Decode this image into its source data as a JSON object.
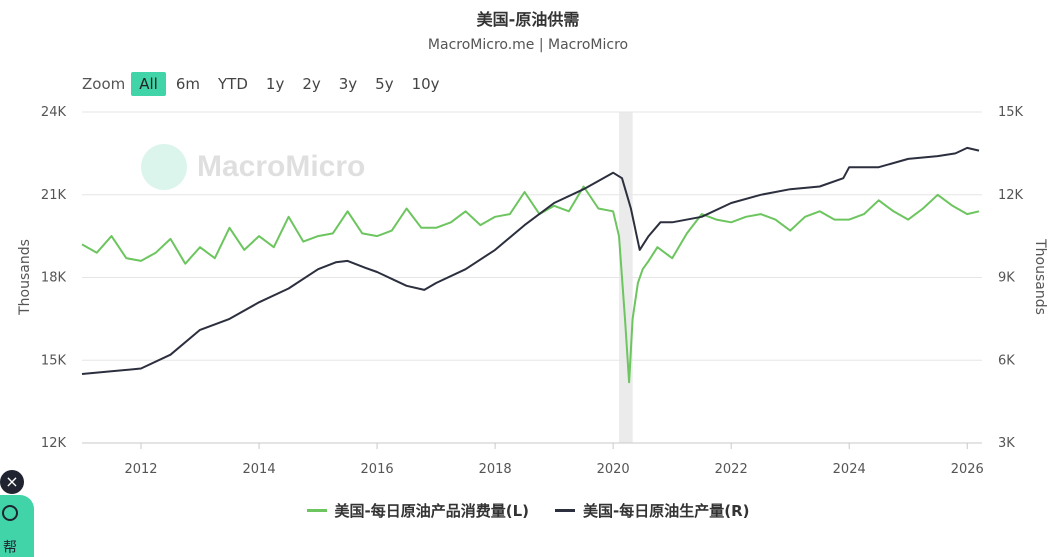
{
  "title": "美国-原油供需",
  "subtitle": "MacroMicro.me | MacroMicro",
  "watermark": "MacroMicro",
  "zoom": {
    "label": "Zoom",
    "buttons": [
      "All",
      "6m",
      "YTD",
      "1y",
      "2y",
      "3y",
      "5y",
      "10y"
    ],
    "active": "All"
  },
  "help_widget": {
    "close_glyph": "×",
    "label": "帮"
  },
  "colors": {
    "consumption": "#6cc55e",
    "production": "#2c2f3e",
    "shade": "#ebebeb",
    "accent": "#40d4a8"
  },
  "chart_data": {
    "type": "line",
    "x_range": [
      2011.0,
      2026.25
    ],
    "x_ticks": [
      "2012",
      "2014",
      "2016",
      "2018",
      "2020",
      "2022",
      "2024",
      "2026"
    ],
    "y_left": {
      "label": "Thousands",
      "range": [
        12000,
        24000
      ],
      "ticks": [
        "12K",
        "15K",
        "18K",
        "21K",
        "24K"
      ]
    },
    "y_right": {
      "label": "Thousands",
      "range": [
        3000,
        15000
      ],
      "ticks": [
        "3K",
        "6K",
        "9K",
        "12K",
        "15K"
      ]
    },
    "shaded_region": [
      2020.1,
      2020.33
    ],
    "grid": true,
    "legend_position": "bottom",
    "series": [
      {
        "name": "美国-每日原油产品消费量(L)",
        "axis": "left",
        "x": [
          2011.0,
          2011.25,
          2011.5,
          2011.75,
          2012.0,
          2012.25,
          2012.5,
          2012.75,
          2013.0,
          2013.25,
          2013.5,
          2013.75,
          2014.0,
          2014.25,
          2014.5,
          2014.75,
          2015.0,
          2015.25,
          2015.5,
          2015.75,
          2016.0,
          2016.25,
          2016.5,
          2016.75,
          2017.0,
          2017.25,
          2017.5,
          2017.75,
          2018.0,
          2018.25,
          2018.5,
          2018.75,
          2019.0,
          2019.25,
          2019.5,
          2019.75,
          2020.0,
          2020.1,
          2020.2,
          2020.27,
          2020.33,
          2020.42,
          2020.5,
          2020.6,
          2020.75,
          2021.0,
          2021.25,
          2021.5,
          2021.75,
          2022.0,
          2022.25,
          2022.5,
          2022.75,
          2023.0,
          2023.25,
          2023.5,
          2023.75,
          2024.0,
          2024.25,
          2024.5,
          2024.75,
          2025.0,
          2025.25,
          2025.5,
          2025.75,
          2026.0,
          2026.2
        ],
        "y": [
          19200,
          18900,
          19500,
          18700,
          18600,
          18900,
          19400,
          18500,
          19100,
          18700,
          19800,
          19000,
          19500,
          19100,
          20200,
          19300,
          19500,
          19600,
          20400,
          19600,
          19500,
          19700,
          20500,
          19800,
          19800,
          20000,
          20400,
          19900,
          20200,
          20300,
          21100,
          20300,
          20600,
          20400,
          21300,
          20500,
          20400,
          19500,
          16500,
          14200,
          16500,
          17800,
          18300,
          18600,
          19100,
          18700,
          19600,
          20300,
          20100,
          20000,
          20200,
          20300,
          20100,
          19700,
          20200,
          20400,
          20100,
          20100,
          20300,
          20800,
          20400,
          20100,
          20500,
          21000,
          20600,
          20300,
          20400
        ]
      },
      {
        "name": "美国-每日原油生产量(R)",
        "axis": "right",
        "x": [
          2011.0,
          2011.5,
          2012.0,
          2012.5,
          2013.0,
          2013.5,
          2014.0,
          2014.5,
          2015.0,
          2015.3,
          2015.5,
          2015.8,
          2016.0,
          2016.3,
          2016.5,
          2016.8,
          2017.0,
          2017.5,
          2018.0,
          2018.5,
          2019.0,
          2019.5,
          2020.0,
          2020.15,
          2020.3,
          2020.45,
          2020.6,
          2020.8,
          2021.0,
          2021.5,
          2022.0,
          2022.5,
          2023.0,
          2023.5,
          2023.9,
          2024.0,
          2024.5,
          2025.0,
          2025.5,
          2025.8,
          2026.0,
          2026.2
        ],
        "y": [
          5500,
          5600,
          5700,
          6200,
          7100,
          7500,
          8100,
          8600,
          9300,
          9550,
          9600,
          9350,
          9200,
          8900,
          8700,
          8550,
          8800,
          9300,
          10000,
          10900,
          11700,
          12200,
          12800,
          12600,
          11500,
          10000,
          10500,
          11000,
          11000,
          11200,
          11700,
          12000,
          12200,
          12300,
          12600,
          13000,
          13000,
          13300,
          13400,
          13500,
          13700,
          13600
        ]
      }
    ]
  }
}
